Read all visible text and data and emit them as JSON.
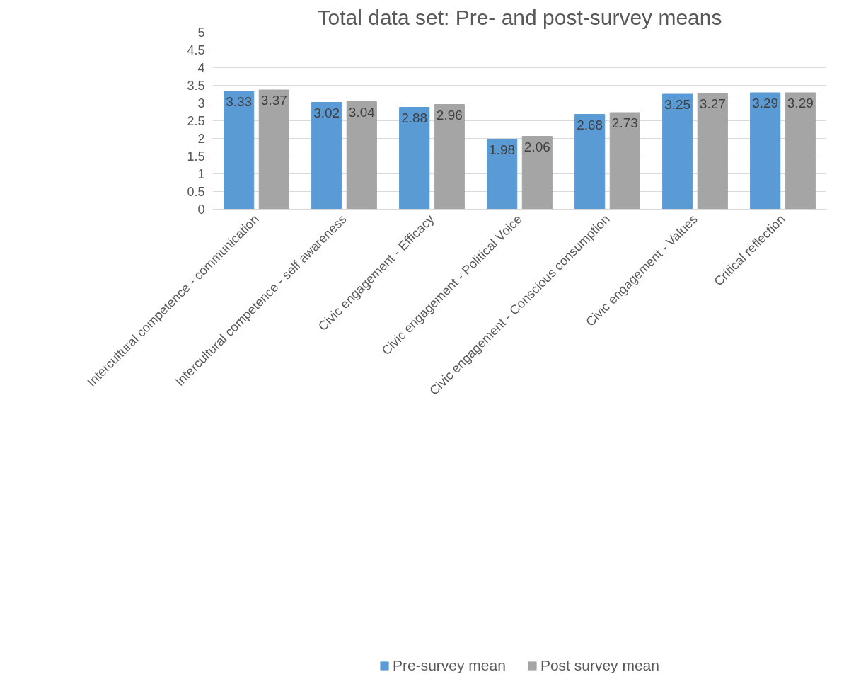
{
  "chart_data": {
    "type": "bar",
    "title": "Total data set: Pre- and post-survey means",
    "categories": [
      "Intercultural competence - communication",
      "Intercultural competence - self awareness",
      "Civic engagement - Efficacy",
      "Civic engagement - Political Voice",
      "Civic engagement - Conscious consumption",
      "Civic engagement - Values",
      "Critical reflection"
    ],
    "series": [
      {
        "name": "Pre-survey mean",
        "color": "#5b9bd5",
        "values": [
          3.33,
          3.02,
          2.88,
          1.98,
          2.68,
          3.25,
          3.29
        ]
      },
      {
        "name": "Post survey mean",
        "color": "#a5a5a5",
        "values": [
          3.37,
          3.04,
          2.96,
          2.06,
          2.73,
          3.27,
          3.29
        ]
      }
    ],
    "ylim": [
      0,
      5
    ],
    "yticks": [
      0,
      0.5,
      1,
      1.5,
      2,
      2.5,
      3,
      3.5,
      4,
      4.5,
      5
    ],
    "grid": "y",
    "legend": "bottom",
    "data_labels": true
  }
}
